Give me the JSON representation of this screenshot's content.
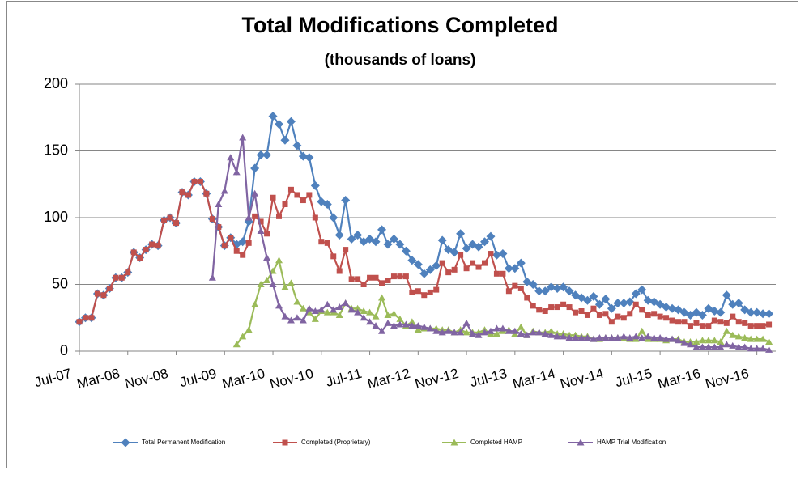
{
  "chart_data": {
    "type": "line",
    "title": "Total Modifications Completed",
    "subtitle": "(thousands of loans)",
    "categories": [
      "Jul-07",
      null,
      null,
      null,
      null,
      null,
      null,
      null,
      "Mar-08",
      null,
      null,
      null,
      null,
      null,
      null,
      null,
      "Nov-08",
      null,
      null,
      null,
      null,
      null,
      null,
      null,
      "Jul-09",
      null,
      null,
      null,
      null,
      null,
      null,
      null,
      "Mar-10",
      null,
      null,
      null,
      null,
      null,
      null,
      null,
      "Nov-10",
      null,
      null,
      null,
      null,
      null,
      null,
      null,
      "Jul-11",
      null,
      null,
      null,
      null,
      null,
      null,
      null,
      "Mar-12",
      null,
      null,
      null,
      null,
      null,
      null,
      null,
      "Nov-12",
      null,
      null,
      null,
      null,
      null,
      null,
      null,
      "Jul-13",
      null,
      null,
      null,
      null,
      null,
      null,
      null,
      "Mar-14",
      null,
      null,
      null,
      null,
      null,
      null,
      null,
      "Nov-14",
      null,
      null,
      null,
      null,
      null,
      null,
      null,
      "Jul-15",
      null,
      null,
      null,
      null,
      null,
      null,
      null,
      "Mar-16",
      null,
      null,
      null,
      null,
      null,
      null,
      null,
      "Nov-16",
      null,
      null
    ],
    "series": [
      {
        "name": "Total Permanent Modification",
        "color": "#4f81bd",
        "marker": "diamond",
        "values": [
          22,
          25,
          25,
          43,
          42,
          47,
          55,
          55,
          59,
          74,
          70,
          76,
          80,
          79,
          98,
          100,
          96,
          119,
          117,
          127,
          127,
          118,
          99,
          93,
          79,
          85,
          80,
          82,
          97,
          137,
          147,
          147,
          176,
          170,
          158,
          172,
          154,
          146,
          145,
          124,
          112,
          110,
          100,
          87,
          113,
          84,
          87,
          82,
          84,
          82,
          91,
          80,
          84,
          80,
          75,
          68,
          65,
          58,
          61,
          64,
          83,
          76,
          74,
          88,
          77,
          80,
          78,
          82,
          86,
          72,
          73,
          62,
          62,
          66,
          52,
          50,
          45,
          45,
          48,
          47,
          48,
          45,
          42,
          40,
          38,
          41,
          35,
          39,
          32,
          36,
          36,
          37,
          43,
          46,
          38,
          37,
          35,
          33,
          32,
          31,
          29,
          27,
          29,
          27,
          32,
          30,
          29,
          42,
          35,
          36,
          31,
          29,
          29,
          28,
          28
        ]
      },
      {
        "name": "Completed (Proprietary)",
        "color": "#c0504d",
        "marker": "square",
        "values": [
          22,
          25,
          25,
          43,
          42,
          47,
          55,
          55,
          59,
          74,
          70,
          76,
          80,
          79,
          98,
          100,
          96,
          119,
          117,
          127,
          127,
          118,
          99,
          93,
          79,
          85,
          75,
          72,
          81,
          101,
          97,
          88,
          115,
          101,
          110,
          121,
          117,
          113,
          117,
          100,
          82,
          81,
          71,
          60,
          76,
          54,
          54,
          50,
          55,
          55,
          51,
          53,
          56,
          56,
          56,
          44,
          45,
          42,
          44,
          46,
          66,
          59,
          61,
          72,
          62,
          66,
          63,
          66,
          73,
          58,
          58,
          45,
          49,
          47,
          40,
          34,
          31,
          30,
          33,
          33,
          35,
          33,
          29,
          30,
          27,
          32,
          27,
          28,
          22,
          26,
          25,
          28,
          35,
          31,
          27,
          28,
          26,
          25,
          23,
          22,
          22,
          19,
          21,
          19,
          19,
          23,
          22,
          21,
          26,
          22,
          21,
          19,
          19,
          19,
          20
        ]
      },
      {
        "name": "Completed HAMP",
        "color": "#9bbb59",
        "marker": "triangle",
        "values": [
          null,
          null,
          null,
          null,
          null,
          null,
          null,
          null,
          null,
          null,
          null,
          null,
          null,
          null,
          null,
          null,
          null,
          null,
          null,
          null,
          null,
          null,
          null,
          null,
          null,
          null,
          5,
          11,
          16,
          35,
          50,
          53,
          60,
          68,
          48,
          51,
          37,
          32,
          29,
          24,
          30,
          29,
          29,
          27,
          36,
          32,
          32,
          30,
          29,
          26,
          40,
          27,
          28,
          24,
          19,
          22,
          16,
          17,
          17,
          17,
          16,
          16,
          14,
          16,
          14,
          14,
          14,
          16,
          13,
          13,
          15,
          16,
          13,
          18,
          12,
          15,
          14,
          14,
          15,
          13,
          13,
          12,
          12,
          11,
          11,
          9,
          9,
          10,
          10,
          10,
          10,
          9,
          9,
          15,
          9,
          9,
          9,
          8,
          9,
          9,
          7,
          7,
          7,
          8,
          8,
          8,
          7,
          15,
          12,
          11,
          10,
          9,
          9,
          9,
          7
        ]
      },
      {
        "name": "HAMP Trial Modification",
        "color": "#8064a2",
        "marker": "triangle",
        "values": [
          null,
          null,
          null,
          null,
          null,
          null,
          null,
          null,
          null,
          null,
          null,
          null,
          null,
          null,
          null,
          null,
          null,
          null,
          null,
          null,
          null,
          null,
          55,
          110,
          120,
          145,
          134,
          160,
          100,
          118,
          90,
          70,
          50,
          34,
          26,
          23,
          25,
          23,
          32,
          30,
          31,
          35,
          31,
          33,
          36,
          31,
          29,
          25,
          22,
          19,
          15,
          21,
          19,
          20,
          20,
          19,
          19,
          18,
          17,
          15,
          14,
          15,
          14,
          14,
          21,
          13,
          12,
          14,
          15,
          17,
          17,
          15,
          15,
          13,
          12,
          14,
          14,
          13,
          12,
          11,
          11,
          10,
          10,
          10,
          10,
          9,
          10,
          10,
          10,
          10,
          11,
          10,
          11,
          10,
          11,
          10,
          10,
          9,
          9,
          8,
          6,
          5,
          3,
          3,
          3,
          3,
          3,
          5,
          4,
          3,
          3,
          2,
          2,
          2,
          1
        ]
      }
    ],
    "ylim": [
      0,
      200
    ],
    "yticks": [
      0,
      50,
      100,
      150,
      200
    ],
    "grid": true,
    "legend": "bottom"
  }
}
